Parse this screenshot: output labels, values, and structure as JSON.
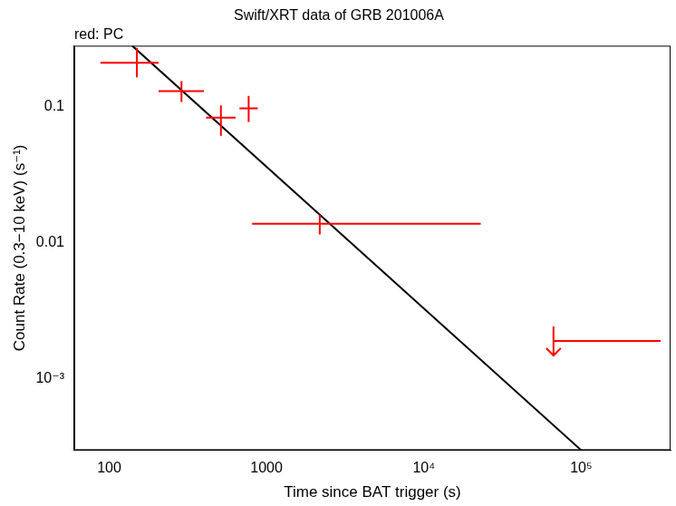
{
  "chart_data": {
    "type": "scatter",
    "title": "Swift/XRT data of GRB 201006A",
    "annotation": "red: PC",
    "x_label": "Time since BAT trigger (s)",
    "y_label": "Count Rate (0.3−10 keV) (s⁻¹)",
    "log": true,
    "grid": false,
    "xlim": [
      60,
      370000
    ],
    "ylim": [
      0.0003,
      0.28
    ],
    "xticks": [
      100,
      1000,
      {
        "value": 10000,
        "label": "10⁴"
      },
      {
        "value": 100000,
        "label": "10⁵"
      }
    ],
    "yticks": [
      {
        "value": 0.001,
        "label": "10⁻³"
      },
      0.01,
      0.1
    ],
    "series": [
      {
        "color": "#ff0000",
        "marker": "cross",
        "x": [
          150,
          288,
          513,
          770,
          2180
        ],
        "values": [
          0.21,
          0.13,
          0.083,
          0.097,
          0.0138
        ],
        "x_lower": [
          88,
          206,
          413,
          673,
          810
        ],
        "x_upper": [
          206,
          400,
          637,
          880,
          23000
        ],
        "y_lower": [
          0.164,
          0.108,
          0.061,
          0.077,
          0.0115
        ],
        "y_upper": [
          0.27,
          0.154,
          0.102,
          0.12,
          0.016
        ]
      }
    ],
    "upper_limits": {
      "color": "#ff0000",
      "x": [
        66700
      ],
      "values": [
        0.0019
      ],
      "x_lower": [
        66700
      ],
      "x_upper": [
        320000
      ]
    },
    "model": {
      "color": "#000000",
      "x": [
        140,
        100000
      ],
      "values": [
        0.28,
        0.0003
      ]
    }
  }
}
